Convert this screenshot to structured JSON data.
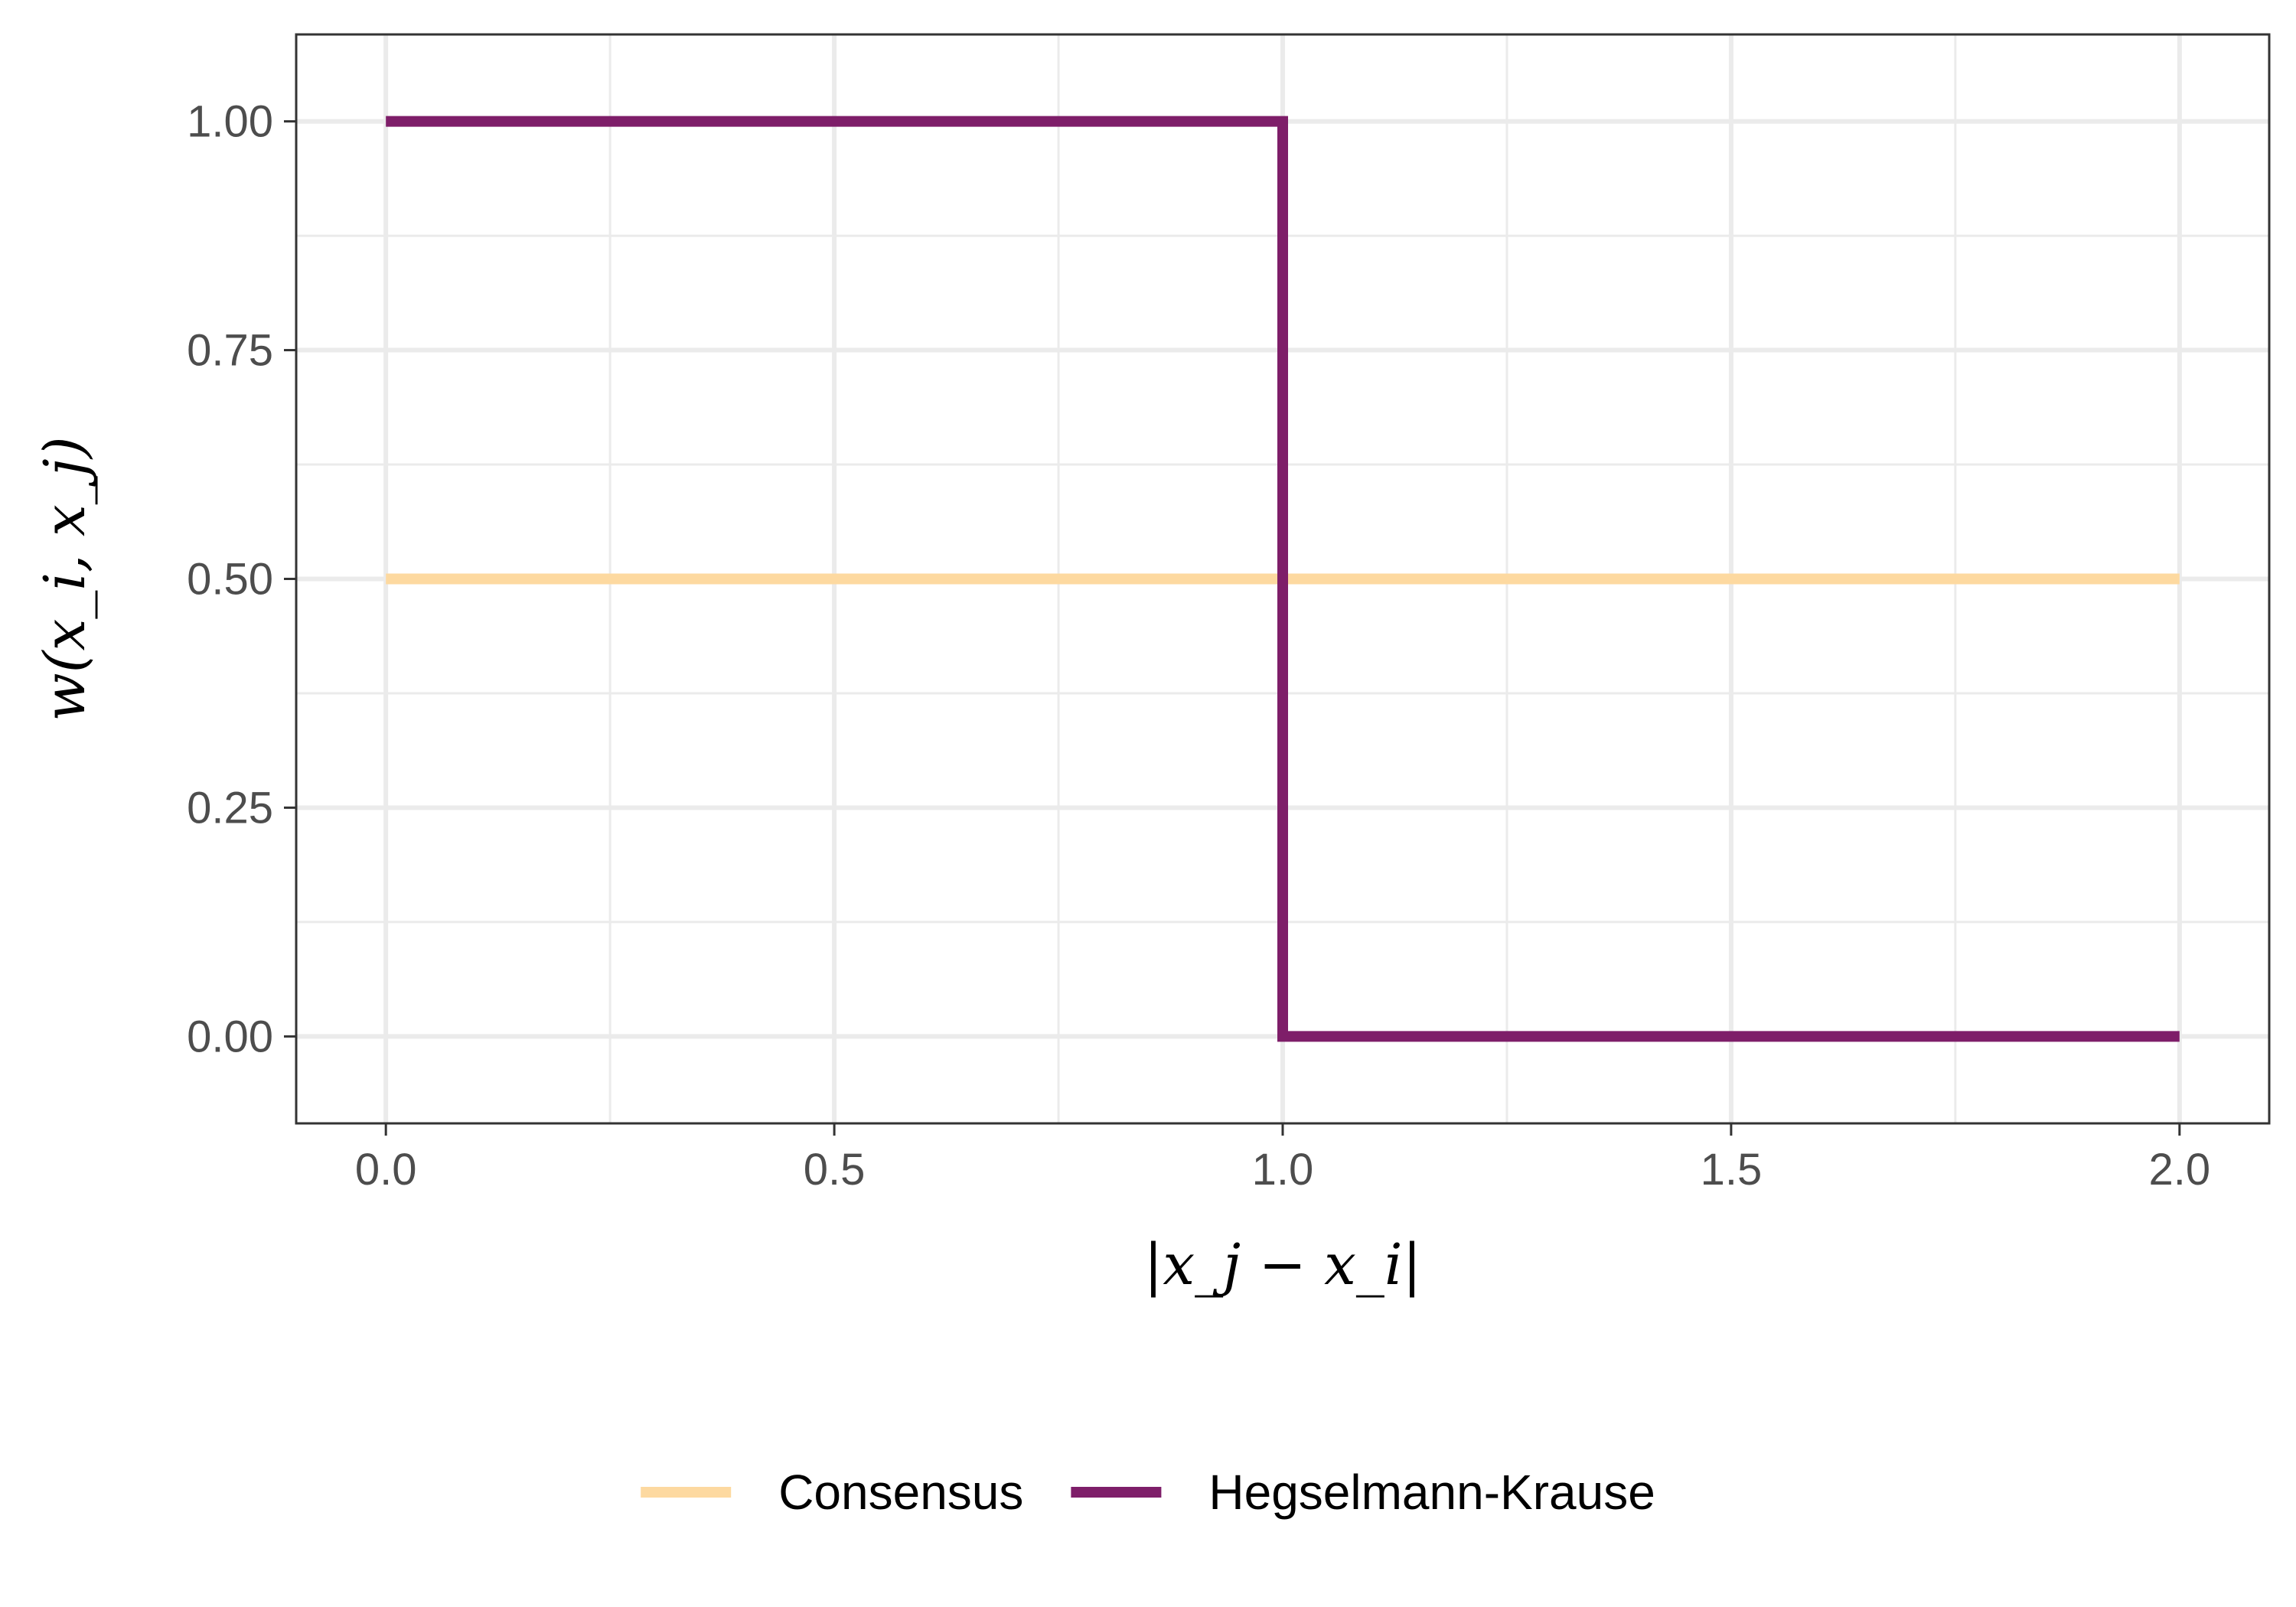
{
  "chart_data": {
    "type": "line",
    "title": "",
    "xlabel": "|x_j − x_i|",
    "ylabel": "w(x_i, x_j)",
    "xlim": [
      -0.1,
      2.1
    ],
    "ylim": [
      -0.095,
      1.095
    ],
    "x_ticks": [
      {
        "value": 0.0,
        "label": "0.0"
      },
      {
        "value": 0.5,
        "label": "0.5"
      },
      {
        "value": 1.0,
        "label": "1.0"
      },
      {
        "value": 1.5,
        "label": "1.5"
      },
      {
        "value": 2.0,
        "label": "2.0"
      }
    ],
    "y_ticks": [
      {
        "value": 0.0,
        "label": "0.00"
      },
      {
        "value": 0.25,
        "label": "0.25"
      },
      {
        "value": 0.5,
        "label": "0.50"
      },
      {
        "value": 0.75,
        "label": "0.75"
      },
      {
        "value": 1.0,
        "label": "1.00"
      }
    ],
    "minor_x": [
      0.25,
      0.75,
      1.25,
      1.75
    ],
    "minor_y": [
      0.125,
      0.375,
      0.625,
      0.875
    ],
    "grid": true,
    "legend_position": "bottom",
    "series": [
      {
        "name": "Consensus",
        "color": "#FDD9A0",
        "points": [
          [
            0.0,
            0.5
          ],
          [
            2.0,
            0.5
          ]
        ]
      },
      {
        "name": "Hegselmann-Krause",
        "color": "#7E1E69",
        "points": [
          [
            0.0,
            1.0
          ],
          [
            1.0,
            1.0
          ],
          [
            1.0,
            0.0
          ],
          [
            2.0,
            0.0
          ]
        ]
      }
    ]
  }
}
